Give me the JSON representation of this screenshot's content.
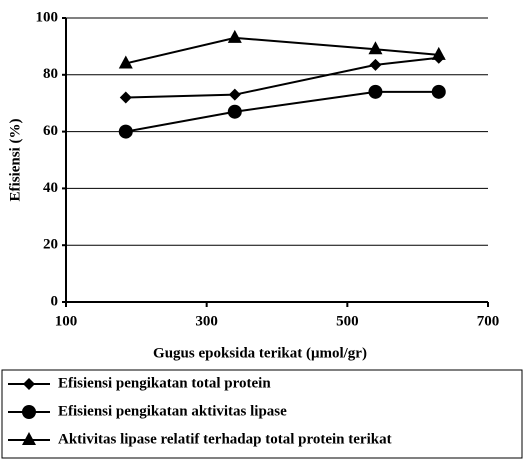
{
  "chart_data": {
    "type": "line",
    "xlabel": "Gugus epoksida terikat (μmol/gr)",
    "ylabel": "Efisiensi (%)",
    "series": [
      {
        "name": "Efisiensi pengikatan total protein",
        "color": "#000000",
        "marker": "diamond",
        "x": [
          185,
          340,
          540,
          630
        ],
        "values": [
          72,
          73,
          83.5,
          86
        ]
      },
      {
        "name": "Efisiensi pengikatan aktivitas lipase",
        "color": "#000000",
        "marker": "circle",
        "x": [
          185,
          340,
          540,
          630
        ],
        "values": [
          60,
          67,
          74,
          74
        ]
      },
      {
        "name": "Aktivitas lipase relatif terhadap total protein terikat",
        "color": "#000000",
        "marker": "triangle",
        "x": [
          185,
          340,
          540,
          630
        ],
        "values": [
          84,
          93,
          89,
          87
        ]
      }
    ],
    "xlim": [
      100,
      700
    ],
    "xticks": [
      100,
      300,
      500,
      700
    ],
    "ylim": [
      0,
      100
    ],
    "yticks": [
      0,
      20,
      40,
      60,
      80,
      100
    ],
    "grid": true,
    "legend": "bottom"
  }
}
